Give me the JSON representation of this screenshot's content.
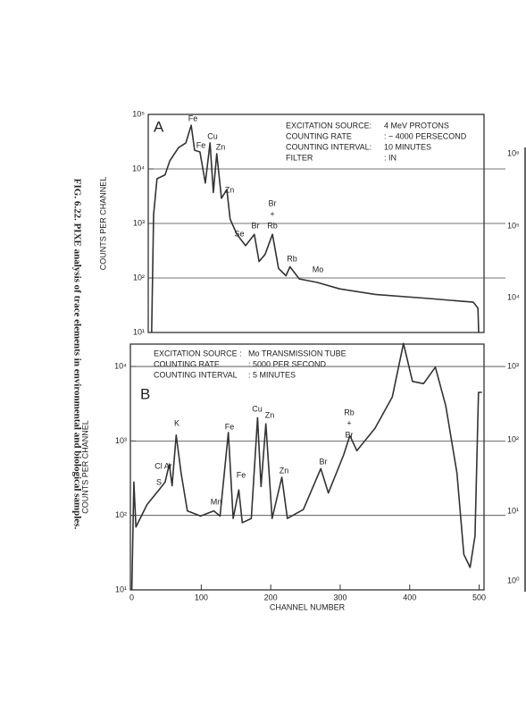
{
  "caption": "FIG. 6.22. PIXE analysis of trace elements in environmental and biological samples.",
  "partial_panel": {
    "labels": [
      "10⁶",
      "10⁵",
      "10⁴",
      "10³",
      "10²",
      "10¹",
      "10⁰"
    ]
  },
  "chart_data": [
    {
      "type": "line",
      "title": "A",
      "y_label": "COUNTS PER CHANNEL",
      "log_y": true,
      "color": "#333333",
      "info": [
        [
          "EXCITATION SOURCE:",
          "4 MeV PROTONS"
        ],
        [
          "COUNTING RATE",
          ":  ~ 4000 PERSECOND"
        ],
        [
          "COUNTING INTERVAL:",
          "10 MINUTES"
        ],
        [
          "FILTER",
          ":  IN"
        ]
      ],
      "annotations": [
        "Fe",
        "Fe",
        "Cu",
        "Zn",
        "Zn",
        "Se",
        "Br",
        "Br",
        "+",
        "Rb",
        "Rb",
        "Mo"
      ],
      "x": [
        5,
        8,
        13,
        25,
        32,
        45,
        56,
        64,
        69,
        77,
        85,
        92,
        97,
        102,
        109,
        117,
        122,
        132,
        145,
        158,
        165,
        174,
        185,
        194,
        205,
        211,
        225,
        251,
        285,
        338,
        418,
        484,
        491,
        492
      ],
      "values": [
        10,
        1450,
        6600,
        7800,
        14000,
        24500,
        30000,
        63000,
        22000,
        20500,
        5500,
        30000,
        3700,
        19000,
        2900,
        4200,
        1200,
        630,
        390,
        630,
        200,
        270,
        630,
        150,
        110,
        160,
        96,
        83,
        63,
        50,
        42,
        36,
        28,
        10
      ],
      "xlim": [
        0,
        500
      ],
      "ylim": [
        10,
        100000
      ],
      "yticks": [
        {
          "value": 10,
          "label": "10¹"
        },
        {
          "value": 100,
          "label": "10²"
        },
        {
          "value": 1000,
          "label": "10³"
        },
        {
          "value": 10000,
          "label": "10⁴"
        },
        {
          "value": 100000,
          "label": "10⁵"
        }
      ],
      "grid": true
    },
    {
      "type": "line",
      "title": "B",
      "y_label": "COUNTS PER CHANNEL",
      "x_label": "CHANNEL NUMBER",
      "log_y": true,
      "color": "#333333",
      "info": [
        [
          "EXCITATION SOURCE :",
          "Mo TRANSMISSION TUBE"
        ],
        [
          "COUNTING RATE",
          ":  5000 PER SECOND"
        ],
        [
          "COUNTING INTERVAL",
          ":  5 MINUTES"
        ]
      ],
      "annotations": [
        "S",
        "Cl Ar",
        "K",
        "Mn",
        "Fe",
        "Fe",
        "Cu",
        "Zn",
        "Zn",
        "Br",
        "Rb",
        "+",
        "Br"
      ],
      "x": [
        0,
        3,
        6,
        22,
        39,
        48,
        54,
        58,
        64,
        71,
        80,
        99,
        118,
        127,
        139,
        146,
        154,
        159,
        172,
        181,
        186,
        193,
        202,
        216,
        224,
        247,
        272,
        283,
        305,
        314,
        324,
        350,
        375,
        391,
        404,
        420,
        437,
        452,
        468,
        478,
        487,
        494,
        499,
        504
      ],
      "values": [
        10,
        280,
        70,
        140,
        220,
        280,
        490,
        250,
        1200,
        370,
        115,
        98,
        115,
        98,
        1300,
        91,
        220,
        80,
        91,
        2050,
        245,
        1700,
        91,
        325,
        91,
        120,
        425,
        200,
        650,
        1180,
        740,
        1480,
        3900,
        20400,
        6300,
        5900,
        9800,
        2950,
        370,
        30,
        20,
        53,
        4500,
        4500
      ],
      "xlim": [
        -2,
        507
      ],
      "ylim": [
        10,
        20000
      ],
      "xticks": [
        0,
        100,
        200,
        300,
        400,
        500
      ],
      "yticks": [
        {
          "value": 10,
          "label": "10¹"
        },
        {
          "value": 100,
          "label": "10²"
        },
        {
          "value": 1000,
          "label": "10³"
        },
        {
          "value": 10000,
          "label": "10⁴"
        }
      ],
      "grid": true
    }
  ]
}
